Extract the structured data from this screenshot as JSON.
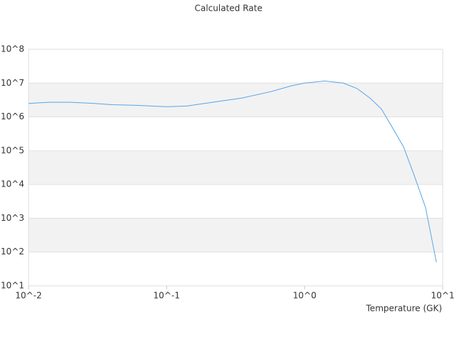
{
  "chart_data": {
    "type": "line",
    "title": "Calculated Rate",
    "x_label": "Temperature (GK)",
    "x": [
      0.01,
      0.014,
      0.02,
      0.03,
      0.04,
      0.06,
      0.1,
      0.14,
      0.2,
      0.35,
      0.57,
      0.8,
      1,
      1.4,
      1.9,
      2.4,
      3,
      3.6,
      4.3,
      5.2,
      6.2,
      7.5,
      9
    ],
    "series": [
      {
        "color": "#5aa5e6",
        "values": [
          2500000,
          2700000,
          2700000,
          2500000,
          2300000,
          2200000,
          2000000,
          2100000,
          2600000,
          3600000,
          5600000,
          8300000,
          10000000,
          11500000,
          10000000,
          6900000,
          3500000,
          1700000,
          500000,
          130000,
          19000,
          2100,
          50
        ]
      }
    ],
    "x_scale": "log",
    "y_scale": "log",
    "xlim": [
      0.01,
      10
    ],
    "ylim": [
      10,
      100000000
    ],
    "xticks": [
      {
        "value": 0.01,
        "label": "10^-2"
      },
      {
        "value": 0.1,
        "label": "10^-1"
      },
      {
        "value": 1,
        "label": "10^0"
      },
      {
        "value": 10,
        "label": "10^1"
      }
    ],
    "yticks": [
      {
        "value": 10,
        "label": "10^1"
      },
      {
        "value": 100,
        "label": "10^2"
      },
      {
        "value": 1000,
        "label": "10^3"
      },
      {
        "value": 10000,
        "label": "10^4"
      },
      {
        "value": 100000,
        "label": "10^5"
      },
      {
        "value": 1000000,
        "label": "10^6"
      },
      {
        "value": 10000000,
        "label": "10^7"
      },
      {
        "value": 100000000,
        "label": "10^8"
      }
    ],
    "grid": "banded"
  }
}
